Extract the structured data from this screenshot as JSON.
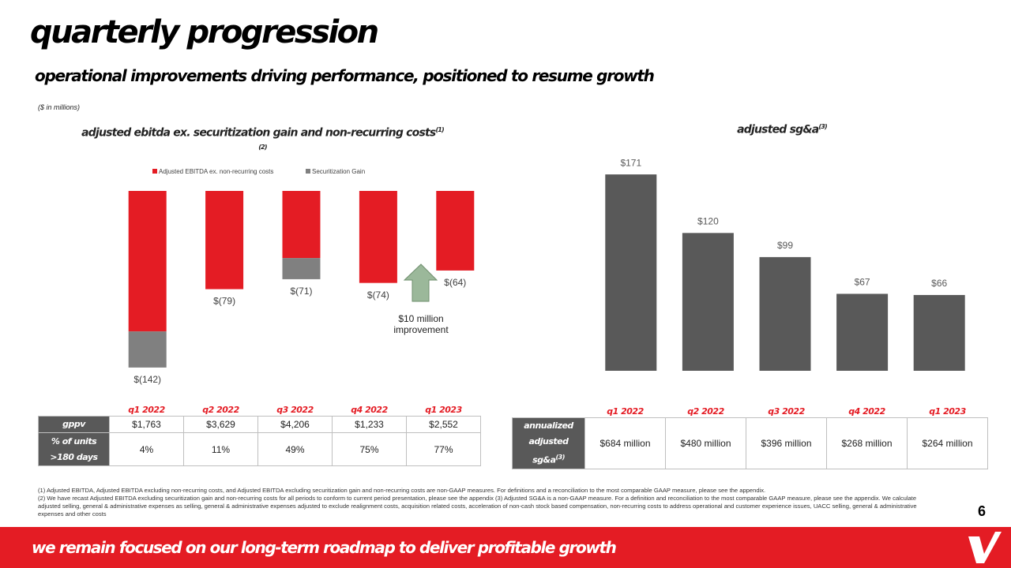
{
  "header": {
    "title": "quarterly progression",
    "subtitle": "operational improvements driving performance, positioned to resume growth",
    "unit_note": "($ in millions)"
  },
  "chart_data": [
    {
      "type": "bar",
      "title": "adjusted ebitda ex. securitization gain and non-recurring costs",
      "title_note": "(1)(2)",
      "series": [
        {
          "name": "Adjusted EBITDA ex. non-recurring costs",
          "color": "#e41c24",
          "values": [
            -113,
            -79,
            -54,
            -74,
            -64
          ]
        },
        {
          "name": "Securitization Gain",
          "color": "#808080",
          "values": [
            -29,
            0,
            -17,
            0,
            0
          ]
        }
      ],
      "totals": [
        -142,
        -79,
        -71,
        -74,
        -64
      ],
      "total_labels": [
        "$(142)",
        "$(79)",
        "$(71)",
        "$(74)",
        "$(64)"
      ],
      "ylim": [
        -150,
        0
      ],
      "legend": "top",
      "annotation": "$10 million improvement"
    },
    {
      "type": "bar",
      "title": "adjusted sg&a",
      "title_note": "(3)",
      "color": "#595959",
      "values": [
        171,
        120,
        99,
        67,
        66
      ],
      "value_labels": [
        "$171",
        "$120",
        "$99",
        "$67",
        "$66"
      ],
      "ylim": [
        0,
        180
      ]
    }
  ],
  "tables": [
    {
      "headers": [
        "q1 2022",
        "q2 2022",
        "q3 2022",
        "q4 2022",
        "q1 2023"
      ],
      "rows": [
        {
          "label": "gppv",
          "cells": [
            "$1,763",
            "$3,629",
            "$4,206",
            "$1,233",
            "$2,552"
          ]
        },
        {
          "label": "% of units >180 days",
          "cells": [
            "4%",
            "11%",
            "49%",
            "75%",
            "77%"
          ]
        }
      ]
    },
    {
      "headers": [
        "q1 2022",
        "q2 2022",
        "q3 2022",
        "q4 2022",
        "q1 2023"
      ],
      "rows": [
        {
          "label": "annualized adjusted sg&a",
          "note": "(3)",
          "cells": [
            "$684 million",
            "$480 million",
            "$396 million",
            "$268 million",
            "$264 million"
          ]
        }
      ]
    }
  ],
  "footnotes": [
    "(1) Adjusted EBITDA, Adjusted EBITDA excluding non-recurring costs, and Adjusted EBITDA excluding securitization gain and non-recurring costs are non-GAAP measures. For definitions and a reconciliation to the most comparable GAAP measure, please see the appendix.",
    "(2) We have recast Adjusted EBITDA excluding securitization gain and non-recurring costs for all periods to conform to current period presentation, please see the appendix (3) Adjusted SG&A is a non-GAAP measure. For a definition and reconciliation to the most comparable GAAP measure, please see the appendix. We calculate adjusted selling, general & administrative expenses as selling, general & administrative expenses adjusted to exclude realignment costs, acquisition related costs, acceleration of non-cash stock based compensation, non-recurring costs to address operational and customer experience issues, UACC selling, general & administrative expenses and other costs"
  ],
  "page_number": "6",
  "footer": "we remain focused on our long-term roadmap to deliver profitable growth"
}
